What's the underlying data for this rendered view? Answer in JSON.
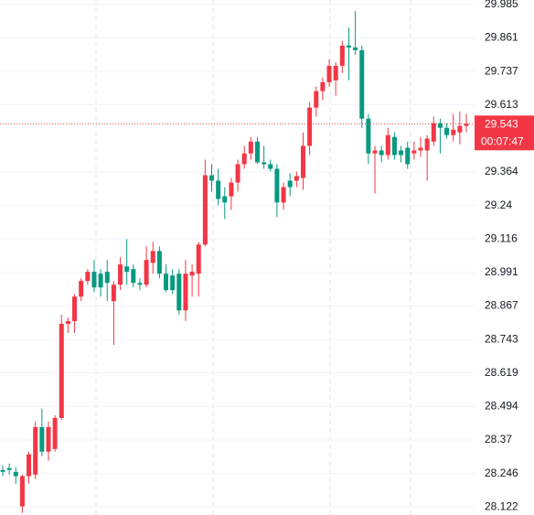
{
  "chart_data": {
    "type": "candlestick",
    "up_color": "#f23645",
    "down_color": "#089981",
    "ylim": [
      28.092,
      30.002
    ],
    "yticks": [
      28.122,
      28.246,
      28.37,
      28.494,
      28.619,
      28.743,
      28.867,
      28.991,
      29.116,
      29.24,
      29.364,
      29.613,
      29.737,
      29.861,
      29.985
    ],
    "grid": true,
    "last_price": 29.543,
    "countdown": "00:07:47",
    "open": [
      28.259,
      28.266,
      28.252,
      28.124,
      28.236,
      28.242,
      28.418,
      28.327,
      28.337,
      28.452,
      28.801,
      28.811,
      28.902,
      28.96,
      28.994,
      28.987,
      28.994,
      28.885,
      28.946,
      29.014,
      29.004,
      28.953,
      28.946,
      29.027,
      29.071,
      28.987,
      28.98,
      28.987,
      28.851,
      28.98,
      28.987,
      29.095,
      29.352,
      29.332,
      29.274,
      29.274,
      29.325,
      29.393,
      29.433,
      29.477,
      29.4,
      29.393,
      29.376,
      29.251,
      29.332,
      29.332,
      29.342,
      29.461,
      29.603,
      29.664,
      29.697,
      29.704,
      29.758,
      29.833,
      29.826,
      29.816,
      29.562,
      29.433,
      29.444,
      29.427,
      29.494,
      29.444,
      29.454,
      29.433,
      29.444,
      29.444,
      29.477,
      29.545,
      29.528,
      29.501,
      29.511,
      29.535
    ],
    "high": [
      28.276,
      28.283,
      28.269,
      28.242,
      28.327,
      28.439,
      28.486,
      28.439,
      28.462,
      28.835,
      28.824,
      28.912,
      28.97,
      29.004,
      29.038,
      29.004,
      29.038,
      28.96,
      29.048,
      29.115,
      29.021,
      28.97,
      29.088,
      29.105,
      29.088,
      29.021,
      29.004,
      29.004,
      29.038,
      29.021,
      29.105,
      29.41,
      29.393,
      29.376,
      29.308,
      29.342,
      29.41,
      29.461,
      29.494,
      29.494,
      29.461,
      29.41,
      29.393,
      29.325,
      29.359,
      29.366,
      29.511,
      29.623,
      29.681,
      29.714,
      29.782,
      29.772,
      29.85,
      29.9,
      29.961,
      29.833,
      29.579,
      29.461,
      29.461,
      29.528,
      29.511,
      29.461,
      29.477,
      29.477,
      29.494,
      29.501,
      29.569,
      29.562,
      29.545,
      29.579,
      29.589,
      29.579
    ],
    "low": [
      28.236,
      28.242,
      28.208,
      28.1,
      28.208,
      28.225,
      28.31,
      28.293,
      28.327,
      28.445,
      28.767,
      28.767,
      28.885,
      28.946,
      28.919,
      28.902,
      28.885,
      28.723,
      28.926,
      28.946,
      28.936,
      28.926,
      28.936,
      28.987,
      28.97,
      28.919,
      28.912,
      28.835,
      28.811,
      28.902,
      28.902,
      29.088,
      29.291,
      29.241,
      29.19,
      29.224,
      29.291,
      29.376,
      29.41,
      29.393,
      29.376,
      29.366,
      29.197,
      29.224,
      29.274,
      29.308,
      29.298,
      29.427,
      29.569,
      29.63,
      29.681,
      29.647,
      29.731,
      29.704,
      29.799,
      29.528,
      29.393,
      29.285,
      29.4,
      29.41,
      29.41,
      29.4,
      29.376,
      29.41,
      29.42,
      29.332,
      29.461,
      29.433,
      29.488,
      29.477,
      29.467,
      29.511
    ],
    "close": [
      28.252,
      28.259,
      28.236,
      28.236,
      28.317,
      28.418,
      28.327,
      28.418,
      28.452,
      28.801,
      28.811,
      28.902,
      28.96,
      28.994,
      28.936,
      28.936,
      28.953,
      28.946,
      29.021,
      28.994,
      28.953,
      28.946,
      29.038,
      29.071,
      28.987,
      28.926,
      28.926,
      28.851,
      28.987,
      28.994,
      29.095,
      29.352,
      29.332,
      29.264,
      29.251,
      29.325,
      29.393,
      29.433,
      29.477,
      29.4,
      29.393,
      29.376,
      29.251,
      29.308,
      29.308,
      29.349,
      29.461,
      29.603,
      29.664,
      29.697,
      29.758,
      29.758,
      29.833,
      29.826,
      29.816,
      29.562,
      29.433,
      29.444,
      29.427,
      29.501,
      29.427,
      29.427,
      29.393,
      29.444,
      29.454,
      29.488,
      29.545,
      29.528,
      29.501,
      29.521,
      29.535,
      29.543
    ]
  }
}
